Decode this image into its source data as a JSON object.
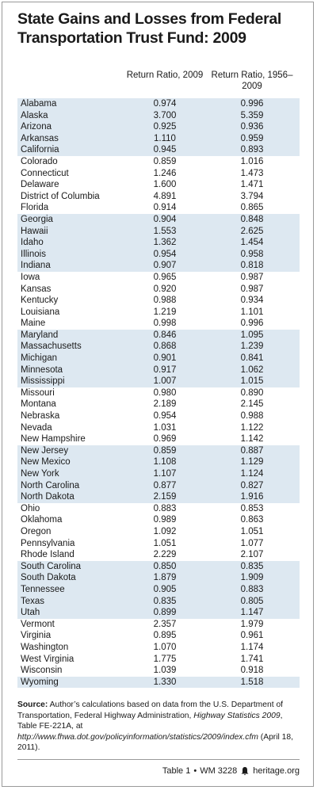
{
  "header": {
    "title_lines": [
      "State Gains and Losses from Federal",
      "Transportation Trust Fund: 2009"
    ]
  },
  "table": {
    "columns": [
      "Return Ratio, 2009",
      "Return Ratio, 1956–2009"
    ],
    "rows": [
      [
        "Alabama",
        "0.974",
        "0.996"
      ],
      [
        "Alaska",
        "3.700",
        "5.359"
      ],
      [
        "Arizona",
        "0.925",
        "0.936"
      ],
      [
        "Arkansas",
        "1.110",
        "0.959"
      ],
      [
        "California",
        "0.945",
        "0.893"
      ],
      [
        "Colorado",
        "0.859",
        "1.016"
      ],
      [
        "Connecticut",
        "1.246",
        "1.473"
      ],
      [
        "Delaware",
        "1.600",
        "1.471"
      ],
      [
        "District of Columbia",
        "4.891",
        "3.794"
      ],
      [
        "Florida",
        "0.914",
        "0.865"
      ],
      [
        "Georgia",
        "0.904",
        "0.848"
      ],
      [
        "Hawaii",
        "1.553",
        "2.625"
      ],
      [
        "Idaho",
        "1.362",
        "1.454"
      ],
      [
        "Illinois",
        "0.954",
        "0.958"
      ],
      [
        "Indiana",
        "0.907",
        "0.818"
      ],
      [
        "Iowa",
        "0.965",
        "0.987"
      ],
      [
        "Kansas",
        "0.920",
        "0.987"
      ],
      [
        "Kentucky",
        "0.988",
        "0.934"
      ],
      [
        "Louisiana",
        "1.219",
        "1.101"
      ],
      [
        "Maine",
        "0.998",
        "0.996"
      ],
      [
        "Maryland",
        "0.846",
        "1.095"
      ],
      [
        "Massachusetts",
        "0.868",
        "1.239"
      ],
      [
        "Michigan",
        "0.901",
        "0.841"
      ],
      [
        "Minnesota",
        "0.917",
        "1.062"
      ],
      [
        "Mississippi",
        "1.007",
        "1.015"
      ],
      [
        "Missouri",
        "0.980",
        "0.890"
      ],
      [
        "Montana",
        "2.189",
        "2.145"
      ],
      [
        "Nebraska",
        "0.954",
        "0.988"
      ],
      [
        "Nevada",
        "1.031",
        "1.122"
      ],
      [
        "New Hampshire",
        "0.969",
        "1.142"
      ],
      [
        "New Jersey",
        "0.859",
        "0.887"
      ],
      [
        "New Mexico",
        "1.108",
        "1.129"
      ],
      [
        "New York",
        "1.107",
        "1.124"
      ],
      [
        "North Carolina",
        "0.877",
        "0.827"
      ],
      [
        "North Dakota",
        "2.159",
        "1.916"
      ],
      [
        "Ohio",
        "0.883",
        "0.853"
      ],
      [
        "Oklahoma",
        "0.989",
        "0.863"
      ],
      [
        "Oregon",
        "1.092",
        "1.051"
      ],
      [
        "Pennsylvania",
        "1.051",
        "1.077"
      ],
      [
        "Rhode Island",
        "2.229",
        "2.107"
      ],
      [
        "South Carolina",
        "0.850",
        "0.835"
      ],
      [
        "South Dakota",
        "1.879",
        "1.909"
      ],
      [
        "Tennessee",
        "0.905",
        "0.883"
      ],
      [
        "Texas",
        "0.835",
        "0.805"
      ],
      [
        "Utah",
        "0.899",
        "1.147"
      ],
      [
        "Vermont",
        "2.357",
        "1.979"
      ],
      [
        "Virginia",
        "0.895",
        "0.961"
      ],
      [
        "Washington",
        "1.070",
        "1.174"
      ],
      [
        "West Virginia",
        "1.775",
        "1.741"
      ],
      [
        "Wisconsin",
        "1.039",
        "0.918"
      ],
      [
        "Wyoming",
        "1.330",
        "1.518"
      ]
    ]
  },
  "source": {
    "label": "Source:",
    "text_1": "Author’s calculations based on data from the U.S. Department of Transportation, Federal Highway Administration,",
    "italic_1": "Highway Statistics 2009",
    "text_2": ", Table FE-221A, at",
    "italic_2": "http://www.fhwa.dot.gov/policyinformation/statistics/2009/index.cfm",
    "text_3": "(April 18, 2011)."
  },
  "footer": {
    "table": "Table 1",
    "report": "WM 3228",
    "site": "heritage.org"
  }
}
